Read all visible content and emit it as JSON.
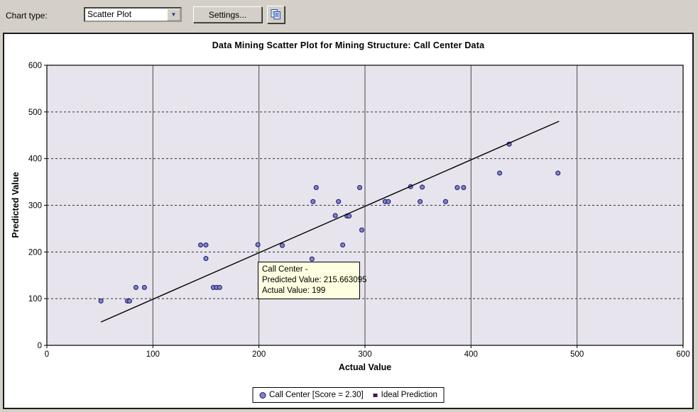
{
  "toolbar": {
    "chart_type_label": "Chart type:",
    "chart_type_value": "Scatter Plot",
    "dropdown_icon": "▼",
    "settings_button_label": "Settings...",
    "copy_button_icon": "copy-icon"
  },
  "colors": {
    "toolbar_bg": "#d4d0c8",
    "panel_bg": "#ffffff",
    "plot_bg": "#e7e4ed",
    "grid_vertical": "#4a4a4a",
    "grid_horizontal": "#2f2f2f",
    "axis": "#000000",
    "marker_fill": "#8282cd",
    "marker_stroke": "#151560",
    "ideal_line": "#000000",
    "tooltip_bg": "#ffffe1",
    "legend_square": "#47194a"
  },
  "tooltip": {
    "line1": "Call Center -",
    "line2": "Predicted Value: 215.663095",
    "line3": "Actual Value: 199"
  },
  "legend": {
    "series_label": "Call Center [Score = 2.30]",
    "ideal_label": "Ideal Prediction"
  },
  "chart_data": {
    "type": "scatter",
    "title": "Data Mining Scatter Plot for Mining Structure: Call Center Data",
    "xlabel": "Actual Value",
    "ylabel": "Predicted Value",
    "xlim": [
      0,
      600
    ],
    "ylim": [
      0,
      600
    ],
    "x_ticks": [
      0,
      100,
      200,
      300,
      400,
      500,
      600
    ],
    "y_ticks": [
      0,
      100,
      200,
      300,
      400,
      500,
      600
    ],
    "grid": {
      "vertical": "solid",
      "horizontal": "dashed"
    },
    "legend_position": "bottom-center",
    "highlighted_point": {
      "actual": 199,
      "predicted": 215.663095
    },
    "series": [
      {
        "name": "Call Center [Score = 2.30]",
        "type": "scatter",
        "marker": "circle",
        "points": [
          [
            51,
            95
          ],
          [
            76,
            95
          ],
          [
            78,
            95
          ],
          [
            84,
            124
          ],
          [
            92,
            124
          ],
          [
            145,
            215
          ],
          [
            150,
            215
          ],
          [
            150,
            186
          ],
          [
            157,
            124
          ],
          [
            160,
            124
          ],
          [
            163,
            124
          ],
          [
            199,
            215.663095
          ],
          [
            222,
            214
          ],
          [
            250,
            185
          ],
          [
            251,
            308
          ],
          [
            254,
            338
          ],
          [
            272,
            278
          ],
          [
            275,
            308
          ],
          [
            279,
            215
          ],
          [
            283,
            277
          ],
          [
            285,
            277
          ],
          [
            295,
            338
          ],
          [
            297,
            247
          ],
          [
            319,
            308
          ],
          [
            322,
            308
          ],
          [
            343,
            340
          ],
          [
            352,
            308
          ],
          [
            354,
            339
          ],
          [
            376,
            308
          ],
          [
            387,
            338
          ],
          [
            393,
            338
          ],
          [
            427,
            369
          ],
          [
            436,
            431
          ],
          [
            482,
            369
          ]
        ]
      },
      {
        "name": "Ideal Prediction",
        "type": "line",
        "points": [
          [
            51,
            50
          ],
          [
            483,
            480
          ]
        ]
      }
    ]
  }
}
